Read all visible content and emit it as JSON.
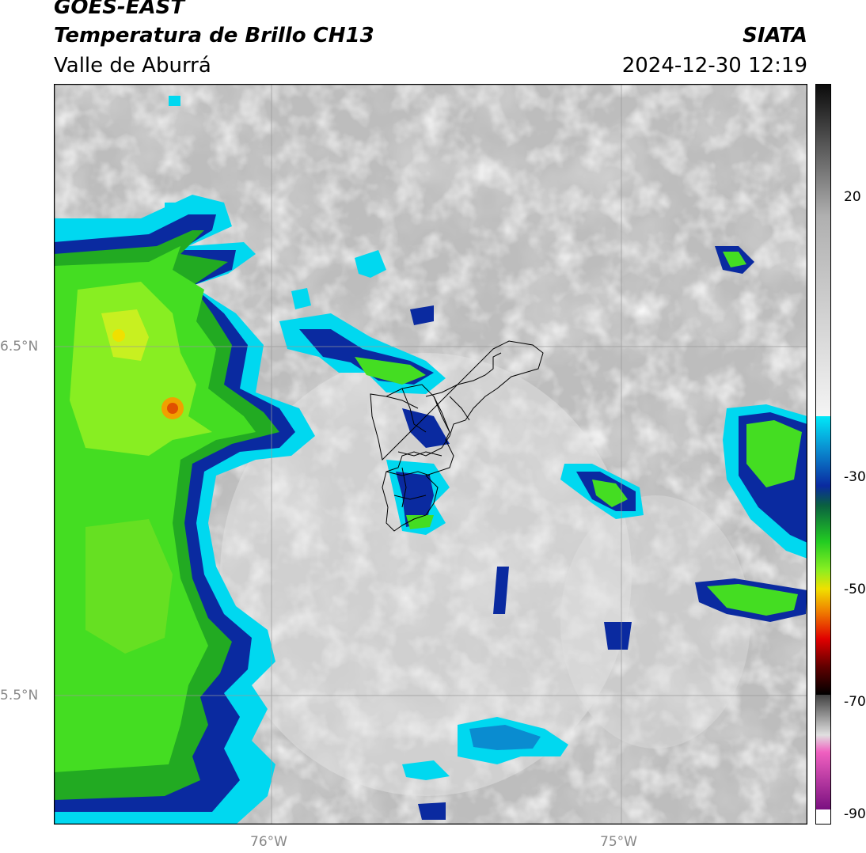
{
  "header": {
    "satellite": "GOES-EAST",
    "product": "Temperatura de Brillo CH13",
    "region": "Valle de Aburrá",
    "agency": "SIATA",
    "datetime": "2024-12-30 12:19"
  },
  "map": {
    "lat_labels": [
      "6.5°N",
      "5.5°N"
    ],
    "lon_labels": [
      "76°W",
      "75°W"
    ]
  },
  "colorbar": {
    "ticks": [
      "20",
      "-30",
      "-50",
      "-70",
      "-90"
    ],
    "colors": {
      "cyan": "#00d8f0",
      "blue": "#0a2aa0",
      "green": "#22cc22",
      "yellow": "#f0e000",
      "red": "#e00000",
      "magenta": "#c040b0"
    }
  }
}
